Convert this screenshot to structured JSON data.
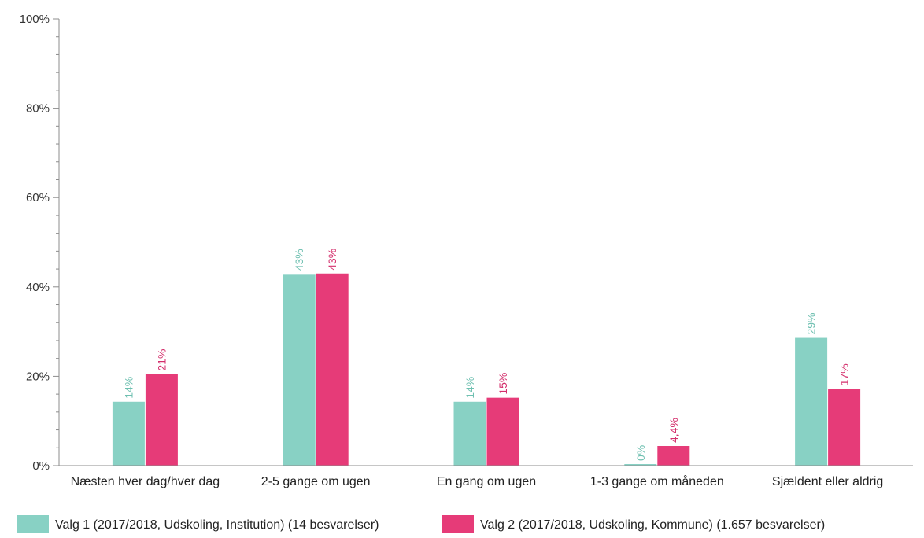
{
  "chart_data": {
    "type": "bar",
    "categories": [
      "Næsten hver dag/hver dag",
      "2-5 gange om ugen",
      "En gang om ugen",
      "1-3 gange om måneden",
      "Sjældent eller aldrig"
    ],
    "series": [
      {
        "name": "Valg 1 (2017/2018, Udskoling, Institution) (14 besvarelser)",
        "color": "#88d1c4",
        "label_color": "#6fc0b1",
        "values": [
          14.3,
          42.9,
          14.3,
          0,
          28.6
        ],
        "labels": [
          "14%",
          "43%",
          "14%",
          "0%",
          "29%"
        ]
      },
      {
        "name": "Valg 2 (2017/2018, Udskoling, Kommune) (1.657 besvarelser)",
        "color": "#e63b78",
        "label_color": "#d42f6c",
        "values": [
          20.5,
          43.0,
          15.2,
          4.4,
          17.2
        ],
        "labels": [
          "21%",
          "43%",
          "15%",
          "4,4%",
          "17%"
        ]
      }
    ],
    "ylim": [
      0,
      100
    ],
    "yticks": [
      "0%",
      "20%",
      "40%",
      "60%",
      "80%",
      "100%"
    ],
    "ytick_values": [
      0,
      20,
      40,
      60,
      80,
      100
    ],
    "xlabel": "",
    "ylabel": "",
    "grid": false,
    "legend_position": "bottom"
  }
}
